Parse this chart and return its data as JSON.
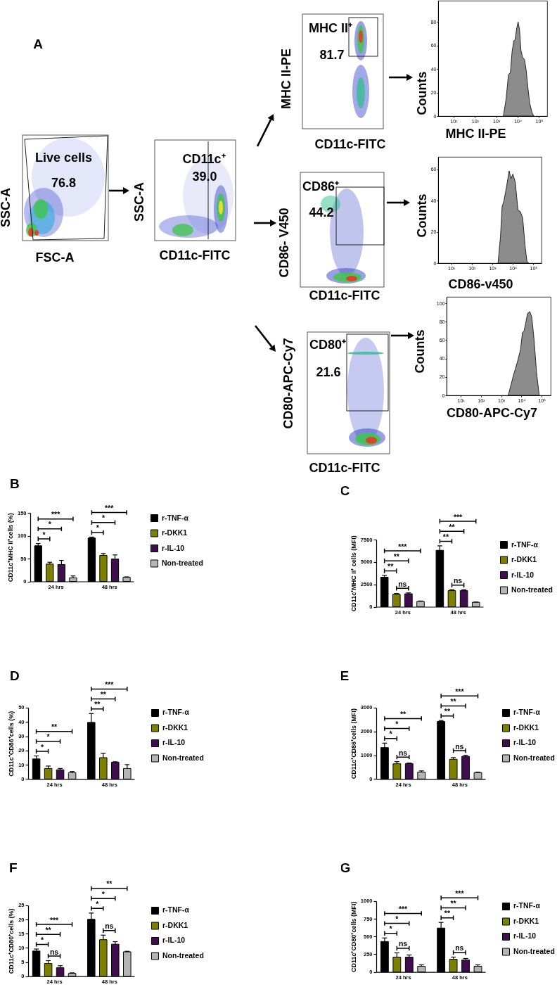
{
  "chart_data": [
    {
      "type": "other",
      "title": "A",
      "annotations": [
        "Live cells",
        "76.8",
        "SSC-A",
        "FSC-A",
        "CD11c⁺",
        "39.0",
        "SSC-A",
        "CD11c-FITC",
        "MHC II⁺",
        "81.7",
        "MHC II-PE",
        "CD11c-FITC",
        "CD86⁺",
        "44.2",
        "CD86- V450",
        "CD11c-FITC",
        "CD80⁺",
        "21.6",
        "CD80-APC-Cy7",
        "CD11c-FITC"
      ]
    },
    {
      "type": "area",
      "xlabel": "MHC II-PE",
      "ylabel": "Counts",
      "color": "#8c8c8c",
      "x": [
        2140,
        2900,
        3700,
        4570,
        5500,
        6600,
        7600,
        9100,
        10500,
        12300,
        14200,
        17000,
        21000,
        25000,
        29800,
        36500,
        47000,
        57000
      ],
      "values": [
        0,
        15,
        35,
        37,
        55,
        64,
        65,
        75,
        80,
        73,
        56,
        50,
        48,
        39,
        25,
        11,
        3,
        0
      ],
      "log": "x",
      "xlim": [
        1.9,
        240000
      ],
      "xticks": [
        {
          "value": 10,
          "label": "10¹"
        },
        {
          "value": 100,
          "label": "10²"
        },
        {
          "value": 1000,
          "label": "10³"
        },
        {
          "value": 10000,
          "label": "10⁴"
        },
        {
          "value": 100000,
          "label": "10⁵"
        }
      ],
      "ylim": [
        0,
        98
      ],
      "yticks": [
        0,
        20,
        40,
        60,
        80
      ]
    },
    {
      "type": "area",
      "xlabel": "CD86-v450",
      "ylabel": "Counts",
      "color": "#8c8c8c",
      "x": [
        1900,
        2500,
        3000,
        3700,
        4800,
        6600,
        8100,
        10000,
        13100,
        17800,
        23200,
        30200,
        39500,
        48700,
        59000
      ],
      "values": [
        0,
        17,
        36,
        40,
        48,
        59,
        54,
        57,
        52,
        34,
        33,
        29,
        11,
        1,
        0
      ],
      "log": "x",
      "xlim": [
        2.3,
        250000
      ],
      "xticks": [
        {
          "value": 10,
          "label": "10¹"
        },
        {
          "value": 100,
          "label": "10²"
        },
        {
          "value": 1000,
          "label": "10³"
        },
        {
          "value": 10000,
          "label": "10⁴"
        },
        {
          "value": 100000,
          "label": "10⁵"
        }
      ],
      "ylim": [
        0,
        68
      ],
      "yticks": [
        0,
        20,
        40,
        60
      ]
    },
    {
      "type": "area",
      "xlabel": "CD80-APC-Cy7",
      "ylabel": "Counts",
      "color": "#8c8c8c",
      "x": [
        2240,
        3100,
        4050,
        6100,
        9100,
        11200,
        13500,
        16200,
        20000,
        26100,
        32600,
        42600,
        56000,
        76000
      ],
      "values": [
        0,
        12,
        22,
        35,
        50,
        68,
        70,
        78,
        89,
        91,
        85,
        60,
        25,
        0
      ],
      "log": "x",
      "xlim": [
        2,
        280000
      ],
      "xticks": [
        {
          "value": 10,
          "label": "10¹"
        },
        {
          "value": 100,
          "label": "10²"
        },
        {
          "value": 1000,
          "label": "10³"
        },
        {
          "value": 10000,
          "label": "10⁴"
        },
        {
          "value": 100000,
          "label": "10⁵"
        }
      ],
      "ylim": [
        0,
        107
      ],
      "yticks": [
        0,
        20,
        40,
        60,
        80,
        100
      ]
    },
    {
      "type": "bar",
      "title": "B",
      "ylabel": "CD11c⁺MHC II⁺cells (%)",
      "categories": [
        "24 hrs",
        "48 hrs"
      ],
      "series": [
        {
          "name": "r-TNF-α",
          "color": "#000000",
          "values": [
            78,
            95
          ],
          "errors": [
            5,
            2
          ]
        },
        {
          "name": "r-DKK1",
          "color": "#808000",
          "values": [
            38,
            57
          ],
          "errors": [
            4,
            4
          ]
        },
        {
          "name": "r-IL-10",
          "color": "#400d50",
          "values": [
            37,
            49
          ],
          "errors": [
            9,
            9
          ]
        },
        {
          "name": "Non-treated",
          "color": "#b4b4b4",
          "values": [
            8,
            9
          ],
          "errors": [
            4,
            1
          ]
        }
      ],
      "ylim": [
        0,
        150
      ],
      "yticks": [
        0,
        50,
        100,
        150
      ],
      "legend": "right",
      "annotations": [
        "*",
        "*",
        "***",
        "*",
        "*",
        "***"
      ]
    },
    {
      "type": "bar",
      "title": "C",
      "ylabel": "CD11c⁺MHC II⁺ cells (MFI)",
      "categories": [
        "24 hrs",
        "48 hrs"
      ],
      "series": [
        {
          "name": "r-TNF-α",
          "color": "#000000",
          "values": [
            3300,
            6300
          ],
          "errors": [
            200,
            500
          ]
        },
        {
          "name": "r-DKK1",
          "color": "#808000",
          "values": [
            1400,
            1800
          ],
          "errors": [
            80,
            100
          ]
        },
        {
          "name": "r-IL-10",
          "color": "#400d50",
          "values": [
            1450,
            1800
          ],
          "errors": [
            100,
            100
          ]
        },
        {
          "name": "Non-treated",
          "color": "#b4b4b4",
          "values": [
            600,
            500
          ],
          "errors": [
            40,
            30
          ]
        }
      ],
      "ylim": [
        0,
        7500
      ],
      "yticks": [
        0,
        2500,
        5000,
        7500
      ],
      "legend": "right",
      "annotations": [
        "**",
        "**",
        "***",
        "ns",
        "**",
        "**",
        "***",
        "ns"
      ]
    },
    {
      "type": "bar",
      "title": "D",
      "ylabel": "CD11c⁺CD86⁺cells (%)",
      "categories": [
        "24 hrs",
        "48 hrs"
      ],
      "series": [
        {
          "name": "r-TNF-α",
          "color": "#000000",
          "values": [
            14.1,
            39.7
          ],
          "errors": [
            2.1,
            6.2
          ]
        },
        {
          "name": "r-DKK1",
          "color": "#808000",
          "values": [
            7.4,
            15
          ],
          "errors": [
            1.7,
            3
          ]
        },
        {
          "name": "r-IL-10",
          "color": "#400d50",
          "values": [
            6.5,
            11.8
          ],
          "errors": [
            0.9,
            0.3
          ]
        },
        {
          "name": "Non-treated",
          "color": "#b4b4b4",
          "values": [
            4.4,
            7.4
          ],
          "errors": [
            0.9,
            2.7
          ]
        }
      ],
      "ylim": [
        0,
        50
      ],
      "yticks": [
        0,
        10,
        20,
        30,
        40,
        50
      ],
      "legend": "right",
      "annotations": [
        "*",
        "*",
        "**",
        "**",
        "**",
        "***"
      ]
    },
    {
      "type": "bar",
      "title": "E",
      "ylabel": "CD11c⁺CD86⁺cells (MFI)",
      "categories": [
        "24 hrs",
        "48 hrs"
      ],
      "series": [
        {
          "name": "r-TNF-α",
          "color": "#000000",
          "values": [
            1320,
            2420
          ],
          "errors": [
            190,
            40
          ]
        },
        {
          "name": "r-DKK1",
          "color": "#808000",
          "values": [
            640,
            830
          ],
          "errors": [
            90,
            70
          ]
        },
        {
          "name": "r-IL-10",
          "color": "#400d50",
          "values": [
            650,
            950
          ],
          "errors": [
            20,
            50
          ]
        },
        {
          "name": "Non-treated",
          "color": "#b4b4b4",
          "values": [
            290,
            270
          ],
          "errors": [
            50,
            20
          ]
        }
      ],
      "ylim": [
        0,
        3000
      ],
      "yticks": [
        0,
        1000,
        2000,
        3000
      ],
      "legend": "right",
      "annotations": [
        "*",
        "*",
        "**",
        "ns",
        "**",
        "**",
        "***",
        "ns"
      ]
    },
    {
      "type": "bar",
      "title": "F",
      "ylabel": "CD11c⁺CD80⁺cells (%)",
      "categories": [
        "24 hrs",
        "48 hrs"
      ],
      "series": [
        {
          "name": "r-TNF-α",
          "color": "#000000",
          "values": [
            8.9,
            20.1
          ],
          "errors": [
            0.7,
            2.2
          ]
        },
        {
          "name": "r-DKK1",
          "color": "#808000",
          "values": [
            4.5,
            12.9
          ],
          "errors": [
            1,
            1.6
          ]
        },
        {
          "name": "r-IL-10",
          "color": "#400d50",
          "values": [
            3,
            11.3
          ],
          "errors": [
            0.7,
            0.9
          ]
        },
        {
          "name": "Non-treated",
          "color": "#b4b4b4",
          "values": [
            1,
            8.6
          ],
          "errors": [
            0.2,
            0.2
          ]
        }
      ],
      "ylim": [
        0,
        25
      ],
      "yticks": [
        0,
        5,
        10,
        15,
        20,
        25
      ],
      "legend": "right",
      "annotations": [
        "*",
        "**",
        "***",
        "ns",
        "*",
        "*",
        "**",
        "ns"
      ]
    },
    {
      "type": "bar",
      "title": "G",
      "ylabel": "CD11c⁺CD80⁺cells (MFI)",
      "categories": [
        "24 hrs",
        "48 hrs"
      ],
      "series": [
        {
          "name": "r-TNF-α",
          "color": "#000000",
          "values": [
            430,
            620
          ],
          "errors": [
            50,
            80
          ]
        },
        {
          "name": "r-DKK1",
          "color": "#808000",
          "values": [
            210,
            180
          ],
          "errors": [
            60,
            30
          ]
        },
        {
          "name": "r-IL-10",
          "color": "#400d50",
          "values": [
            210,
            170
          ],
          "errors": [
            30,
            20
          ]
        },
        {
          "name": "Non-treated",
          "color": "#b4b4b4",
          "values": [
            80,
            80
          ],
          "errors": [
            20,
            20
          ]
        }
      ],
      "ylim": [
        0,
        1000
      ],
      "yticks": [
        0,
        250,
        500,
        750,
        1000
      ],
      "legend": "right",
      "annotations": [
        "*",
        "*",
        "***",
        "ns",
        "**",
        "**",
        "***",
        "ns"
      ]
    }
  ]
}
